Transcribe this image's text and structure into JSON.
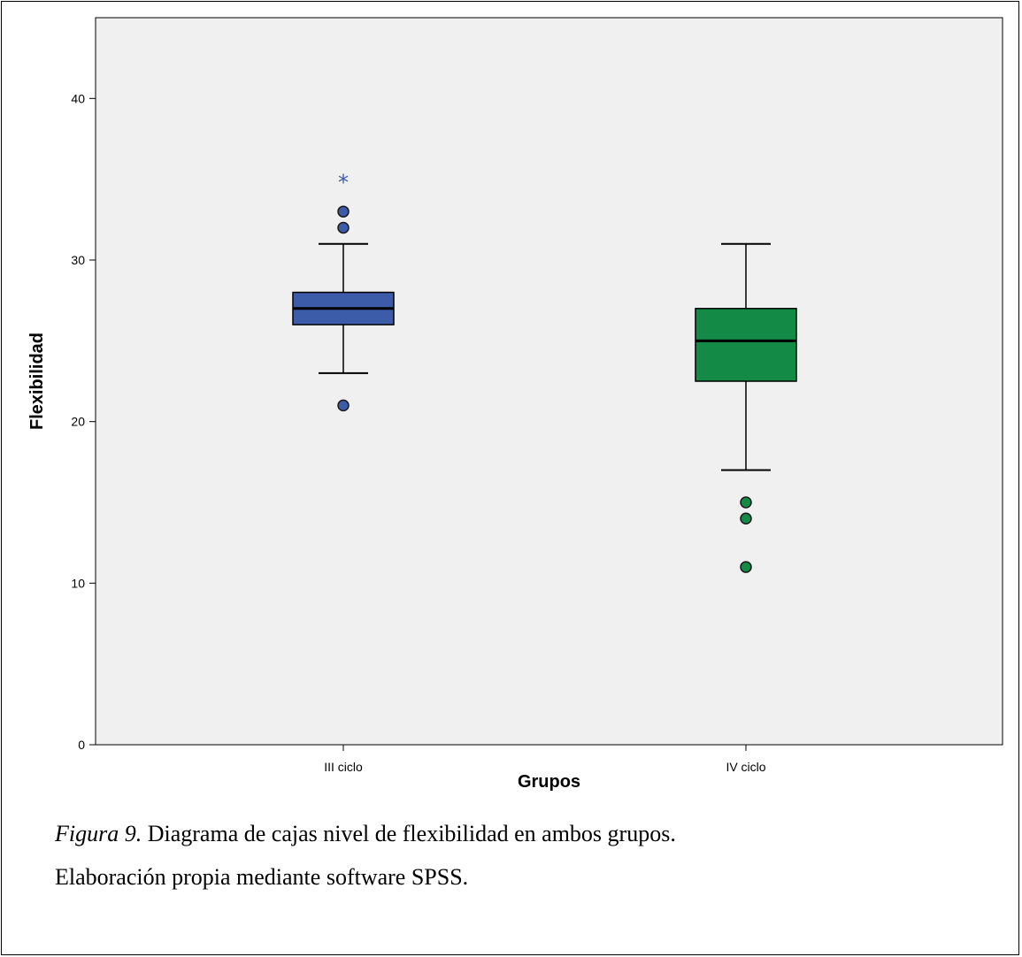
{
  "chart_data": {
    "type": "boxplot",
    "xlabel": "Grupos",
    "ylabel": "Flexibilidad",
    "ylim": [
      0,
      45
    ],
    "yticks": [
      0,
      10,
      20,
      30,
      40
    ],
    "categories": [
      "III ciclo",
      "IV ciclo"
    ],
    "boxes": [
      {
        "category": "III ciclo",
        "color": "#3c5ba8",
        "whisker_low": 23,
        "q1": 26,
        "median": 27,
        "q3": 28,
        "whisker_high": 31,
        "outliers": [
          33,
          32,
          21
        ],
        "extremes": [
          35
        ]
      },
      {
        "category": "IV ciclo",
        "color": "#138a45",
        "whisker_low": 17,
        "q1": 22.5,
        "median": 25,
        "q3": 27,
        "whisker_high": 31,
        "outliers": [
          15,
          14,
          11
        ],
        "extremes": []
      }
    ],
    "plot_background": "#f0f0f0",
    "grid": false
  },
  "caption": {
    "figure_label": "Figura 9.",
    "text": " Diagrama de cajas nivel de flexibilidad en ambos grupos.",
    "source": "Elaboración propia mediante software SPSS."
  }
}
